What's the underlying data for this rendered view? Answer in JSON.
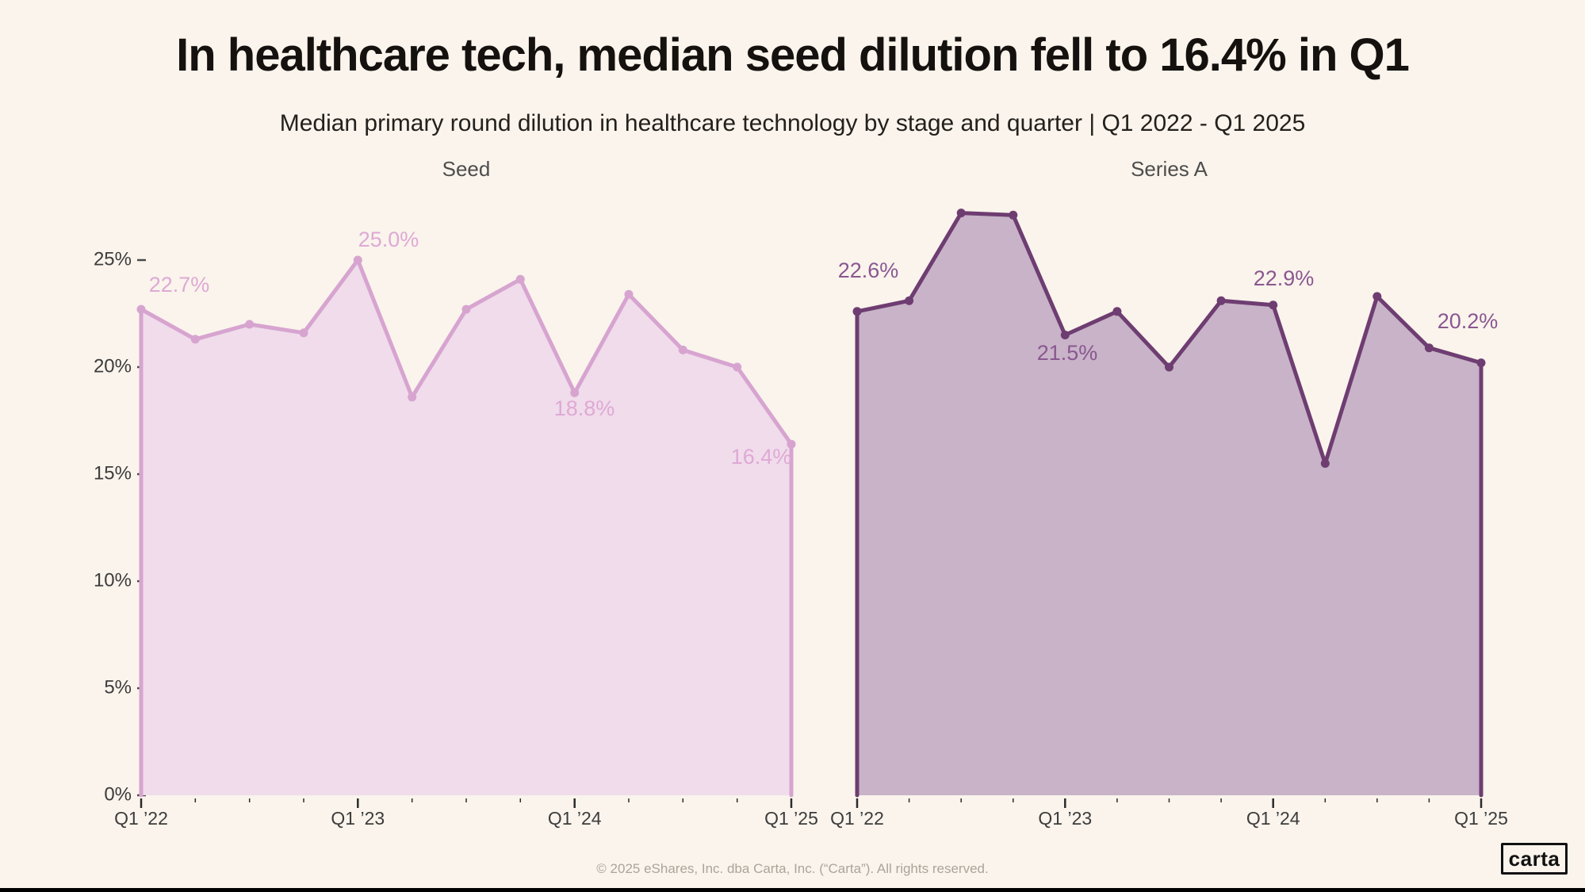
{
  "header": {
    "title": "In healthcare tech, median seed dilution fell to 16.4% in Q1",
    "subtitle": "Median primary round dilution in healthcare technology by stage and quarter | Q1 2022 - Q1 2025"
  },
  "y_axis": {
    "tick_labels": [
      "0%",
      "5%",
      "10%",
      "15%",
      "20%",
      "25%"
    ]
  },
  "x_axis": {
    "tick_labels": [
      "Q1 ’22",
      "Q1 ’23",
      "Q1 ’24",
      "Q1 ’25"
    ]
  },
  "colors": {
    "background": "#FAF4EC",
    "seed_fill": "#F0DCEB",
    "seed_line": "#D7A4D0",
    "seed_label": "#DFA9D5",
    "series_a_fill": "#C8B3C8",
    "series_a_line": "#6E3D71",
    "series_a_label": "#8A5790",
    "axis_text": "#3C3C3C",
    "tick_mark": "#4A4A4A",
    "panel_title": "#4D4D4D",
    "title_text": "#15110E",
    "footer_text": "#ABA49B"
  },
  "chart_data": [
    {
      "type": "area",
      "title": "Seed",
      "categories": [
        "Q1 '22",
        "Q2 '22",
        "Q3 '22",
        "Q4 '22",
        "Q1 '23",
        "Q2 '23",
        "Q3 '23",
        "Q4 '23",
        "Q1 '24",
        "Q2 '24",
        "Q3 '24",
        "Q4 '24",
        "Q1 '25"
      ],
      "values": [
        22.7,
        21.3,
        22.0,
        21.6,
        25.0,
        18.6,
        22.7,
        24.1,
        18.8,
        23.4,
        20.8,
        20.0,
        16.4
      ],
      "labeled_points": [
        {
          "index": 0,
          "label": "22.7%"
        },
        {
          "index": 4,
          "label": "25.0%"
        },
        {
          "index": 8,
          "label": "18.8%"
        },
        {
          "index": 12,
          "label": "16.4%"
        }
      ],
      "xlabel": "",
      "ylabel": "",
      "ylim": [
        0,
        28
      ],
      "grid": false,
      "legend": "none"
    },
    {
      "type": "area",
      "title": "Series A",
      "categories": [
        "Q1 '22",
        "Q2 '22",
        "Q3 '22",
        "Q4 '22",
        "Q1 '23",
        "Q2 '23",
        "Q3 '23",
        "Q4 '23",
        "Q1 '24",
        "Q2 '24",
        "Q3 '24",
        "Q4 '24",
        "Q1 '25"
      ],
      "values": [
        22.6,
        23.1,
        27.2,
        27.1,
        21.5,
        22.6,
        20.0,
        23.1,
        22.9,
        15.5,
        23.3,
        20.9,
        20.2
      ],
      "labeled_points": [
        {
          "index": 0,
          "label": "22.6%"
        },
        {
          "index": 4,
          "label": "21.5%"
        },
        {
          "index": 8,
          "label": "22.9%"
        },
        {
          "index": 12,
          "label": "20.2%"
        }
      ],
      "xlabel": "",
      "ylabel": "",
      "ylim": [
        0,
        28
      ],
      "grid": false,
      "legend": "none"
    }
  ],
  "footer": {
    "copyright": "© 2025 eShares, Inc. dba Carta, Inc. (“Carta”). All rights reserved.",
    "logo_text": "carta"
  }
}
